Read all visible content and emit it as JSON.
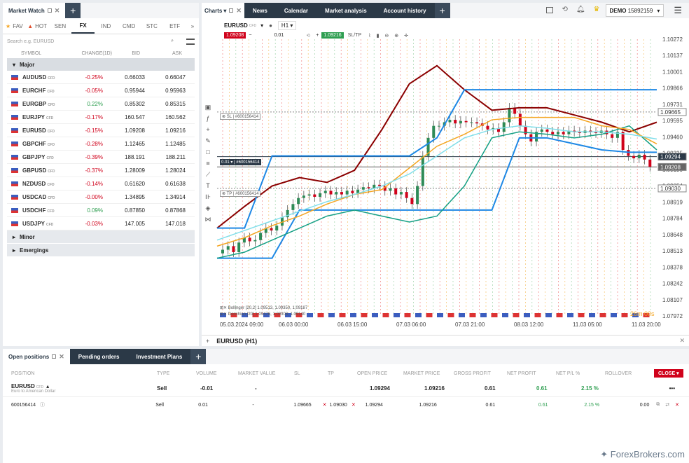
{
  "market_watch": {
    "title": "Market Watch",
    "tabs": [
      "FAV",
      "HOT",
      "SEN",
      "FX",
      "IND",
      "CMD",
      "STC",
      "ETF"
    ],
    "more": "»",
    "search_placeholder": "Search e.g. EURUSD",
    "columns": [
      "SYMBOL",
      "CHANGE(1D)",
      "BID",
      "ASK"
    ],
    "group_major": "Major",
    "rows": [
      {
        "symbol": "AUDUSD",
        "change": "-0.25%",
        "bid": "0.66033",
        "ask": "0.66047",
        "dir": "neg"
      },
      {
        "symbol": "EURCHF",
        "change": "-0.05%",
        "bid": "0.95944",
        "ask": "0.95963",
        "dir": "neg"
      },
      {
        "symbol": "EURGBP",
        "change": "0.22%",
        "bid": "0.85302",
        "ask": "0.85315",
        "dir": "pos"
      },
      {
        "symbol": "EURJPY",
        "change": "-0.17%",
        "bid": "160.547",
        "ask": "160.562",
        "dir": "neg"
      },
      {
        "symbol": "EURUSD",
        "change": "-0.15%",
        "bid": "1.09208",
        "ask": "1.09216",
        "dir": "neg"
      },
      {
        "symbol": "GBPCHF",
        "change": "-0.28%",
        "bid": "1.12465",
        "ask": "1.12485",
        "dir": "neg"
      },
      {
        "symbol": "GBPJPY",
        "change": "-0.39%",
        "bid": "188.191",
        "ask": "188.211",
        "dir": "neg"
      },
      {
        "symbol": "GBPUSD",
        "change": "-0.37%",
        "bid": "1.28009",
        "ask": "1.28024",
        "dir": "neg"
      },
      {
        "symbol": "NZDUSD",
        "change": "-0.14%",
        "bid": "0.61620",
        "ask": "0.61638",
        "dir": "neg"
      },
      {
        "symbol": "USDCAD",
        "change": "-0.00%",
        "bid": "1.34895",
        "ask": "1.34914",
        "dir": "neg"
      },
      {
        "symbol": "USDCHF",
        "change": "0.09%",
        "bid": "0.87850",
        "ask": "0.87868",
        "dir": "pos"
      },
      {
        "symbol": "USDJPY",
        "change": "-0.03%",
        "bid": "147.005",
        "ask": "147.018",
        "dir": "neg"
      }
    ],
    "cfd": "CFD",
    "group_minor": "Minor",
    "group_emergings": "Emergings"
  },
  "top": {
    "charts": "Charts",
    "tabs": [
      "News",
      "Calendar",
      "Market analysis",
      "Account history"
    ],
    "account": "DEMO",
    "account_id": "15892159"
  },
  "chart": {
    "symbol": "EURUSD",
    "timeframe": "H1",
    "sell_price": "1.09208",
    "volume": "0.01",
    "buy_price": "1.09216",
    "sltp": "SL/TP",
    "sl_label": "SL",
    "sl_id": "#600156414",
    "pos_vol": "0.01",
    "pos_id": "#600156414",
    "tp_label": "TP",
    "tp_id": "#600156414",
    "y_ticks": [
      "1.10272",
      "1.10137",
      "1.10001",
      "1.09866",
      "1.09731",
      "1.09595",
      "1.09460",
      "1.09325",
      "1.09190",
      "1.09054",
      "1.08919",
      "1.08784",
      "1.08648",
      "1.08513",
      "1.08378",
      "1.08242",
      "1.08107",
      "1.07972"
    ],
    "price_tags": {
      "sl": "1.09665",
      "pos": "1.09294",
      "cur": "1.09208",
      "tp": "1.09030"
    },
    "x_ticks": [
      "05.03.2024 09:00",
      "06.03 00:00",
      "06.03 15:00",
      "07.03 06:00",
      "07.03 21:00",
      "08.03 12:00",
      "11.03 05:00",
      "11.03 20:00"
    ],
    "legend1": "Bollinger [20,2] 1.09513, 1.09350, 1.09187",
    "legend2": "Donchian [20] 1.09476, 1.09308, 1.09140",
    "timer": "26m 00s",
    "title_bottom": "EURUSD (H1)",
    "colors": {
      "bull": "#2e8b57",
      "bear": "#d0021b",
      "bollinger": "#8b0000",
      "donchian": "#1e88e5",
      "ma": "#f5a623",
      "ema": "#16a085",
      "signal": "#80deea"
    }
  },
  "chart_data": {
    "type": "candlestick",
    "title": "EURUSD (H1)",
    "ylim": [
      1.0797,
      1.1027
    ],
    "x_labels": [
      "05.03.2024 09:00",
      "06.03 00:00",
      "06.03 15:00",
      "07.03 06:00",
      "07.03 21:00",
      "08.03 12:00",
      "11.03 05:00",
      "11.03 20:00"
    ],
    "close": [
      1.0852,
      1.0855,
      1.085,
      1.0858,
      1.0862,
      1.0859,
      1.086,
      1.0866,
      1.087,
      1.0868,
      1.0872,
      1.0879,
      1.0885,
      1.089,
      1.0895,
      1.0897,
      1.0898,
      1.0896,
      1.0899,
      1.0901,
      1.0898,
      1.09,
      1.0898,
      1.0901,
      1.0899,
      1.0902,
      1.0904,
      1.0903,
      1.0906,
      1.0905,
      1.0901,
      1.0903,
      1.0898,
      1.09,
      1.0895,
      1.089,
      1.0905,
      1.093,
      1.0945,
      1.0955,
      1.0955,
      1.0958,
      1.096,
      1.0957,
      1.0959,
      1.0958,
      1.0958,
      1.0957,
      1.0955,
      1.0952,
      1.0953,
      1.095,
      1.0958,
      1.097,
      1.0965,
      1.0955,
      1.0948,
      1.0942,
      1.095,
      1.0952,
      1.095,
      1.0948,
      1.095,
      1.0948,
      1.0951,
      1.095,
      1.0949,
      1.0951,
      1.095,
      1.0949,
      1.0951,
      1.0948,
      1.0945,
      1.095,
      1.0935,
      1.093,
      1.0928,
      1.0931,
      1.0927,
      1.0921
    ],
    "series": [
      {
        "name": "Bollinger",
        "values": [
          1.087,
          1.0888,
          1.0905,
          1.0912,
          1.0908,
          1.0918,
          1.0952,
          1.099,
          1.1005,
          1.0985,
          1.0968,
          1.097,
          1.097,
          1.0964,
          1.0958,
          1.095,
          1.0958
        ]
      },
      {
        "name": "Donchian",
        "values": [
          1.087,
          1.087,
          1.093,
          1.093,
          1.093,
          1.093,
          1.093,
          1.093,
          1.0945,
          1.0985,
          1.0985,
          1.0985,
          1.0985,
          1.0985,
          1.0985,
          1.0985,
          1.0985
        ]
      }
    ]
  },
  "positions": {
    "tabs": [
      "Open positions",
      "Pending orders",
      "Investment Plans"
    ],
    "columns": [
      "POSITION",
      "TYPE",
      "VOLUME",
      "MARKET VALUE",
      "SL",
      "TP",
      "OPEN PRICE",
      "MARKET PRICE",
      "GROSS PROFIT",
      "NET PROFIT",
      "NET P/L %",
      "ROLLOVER"
    ],
    "close": "CLOSE",
    "summary": {
      "symbol": "EURUSD",
      "cfd": "CFD",
      "desc": "Euro to American Dollar",
      "type": "Sell",
      "volume": "-0.01",
      "market_value": "-",
      "open": "1.09294",
      "market": "1.09216",
      "gross": "0.61",
      "net": "0.61",
      "pl": "2.15 %"
    },
    "detail": {
      "id": "600156414",
      "type": "Sell",
      "volume": "0.01",
      "market_value": "-",
      "sl": "1.09665",
      "tp": "1.09030",
      "open": "1.09294",
      "market": "1.09216",
      "gross": "0.61",
      "net": "0.61",
      "pl": "2.15 %",
      "rollover": "0.00"
    }
  },
  "watermark": "ForexBrokers.com"
}
